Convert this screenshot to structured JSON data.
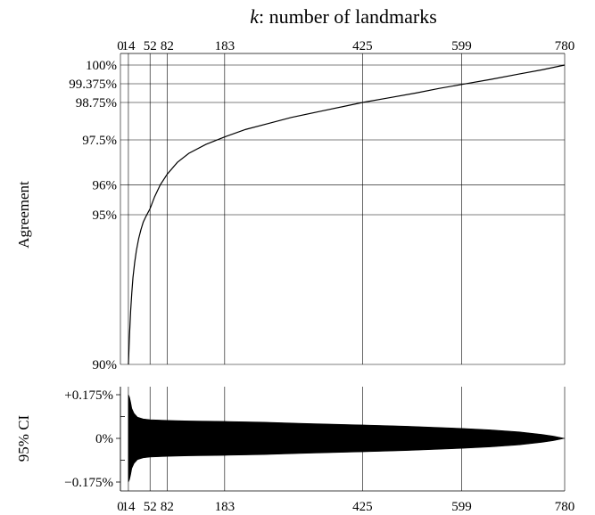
{
  "chart_data": [
    {
      "type": "line",
      "title": "k: number of landmarks",
      "title_var": "k",
      "title_rest": ": number of landmarks",
      "xlabel": "",
      "ylabel": "Agreement",
      "xlim": [
        0,
        780
      ],
      "ylim": [
        90,
        100
      ],
      "x_ticks": [
        0,
        14,
        52,
        82,
        183,
        425,
        599,
        780
      ],
      "x_tick_labels": [
        "0",
        "14",
        "52",
        "82",
        "183",
        "425",
        "599",
        "780"
      ],
      "y_ticks": [
        90,
        95,
        96,
        97.5,
        98.75,
        99.375,
        100
      ],
      "y_tick_labels": [
        "90%",
        "95%",
        "96%",
        "97.5%",
        "98.75%",
        "99.375%",
        "100%"
      ],
      "grid": true,
      "line_color": "#000000",
      "series": [
        {
          "x": [
            14,
            15,
            16,
            18,
            20,
            22,
            25,
            28,
            32,
            36,
            40,
            45,
            52,
            60,
            70,
            82,
            100,
            120,
            150,
            183,
            220,
            260,
            300,
            350,
            400,
            425,
            470,
            520,
            560,
            599,
            650,
            700,
            740,
            780
          ],
          "values": [
            90.0,
            90.5,
            91.0,
            91.8,
            92.4,
            92.9,
            93.4,
            93.8,
            94.2,
            94.5,
            94.75,
            94.95,
            95.2,
            95.6,
            96.0,
            96.35,
            96.75,
            97.05,
            97.35,
            97.6,
            97.85,
            98.05,
            98.25,
            98.45,
            98.65,
            98.75,
            98.9,
            99.07,
            99.22,
            99.35,
            99.52,
            99.7,
            99.84,
            100.0
          ]
        }
      ]
    },
    {
      "type": "area",
      "title": "",
      "xlabel": "",
      "ylabel": "95% CI",
      "xlim": [
        0,
        780
      ],
      "ylim": [
        -0.2,
        0.2
      ],
      "x_ticks": [
        0,
        14,
        52,
        82,
        183,
        425,
        599,
        780
      ],
      "x_tick_labels": [
        "0",
        "14",
        "52",
        "82",
        "183",
        "425",
        "599",
        "780"
      ],
      "y_ticks": [
        -0.175,
        0,
        0.175
      ],
      "y_tick_labels": [
        "−0.175%",
        "0%",
        "+0.175%"
      ],
      "y_minor_ticks": [
        -0.0875,
        0.0875
      ],
      "grid": true,
      "fill_color": "#000000",
      "series": [
        {
          "x": [
            14,
            16,
            18,
            20,
            24,
            30,
            40,
            52,
            82,
            120,
            183,
            250,
            320,
            425,
            500,
            599,
            650,
            700,
            740,
            760,
            780
          ],
          "upper": [
            0.175,
            0.165,
            0.145,
            0.12,
            0.1,
            0.085,
            0.078,
            0.075,
            0.072,
            0.07,
            0.068,
            0.065,
            0.06,
            0.054,
            0.049,
            0.04,
            0.034,
            0.026,
            0.016,
            0.009,
            0.0
          ],
          "lower": [
            -0.175,
            -0.165,
            -0.145,
            -0.12,
            -0.1,
            -0.085,
            -0.078,
            -0.075,
            -0.072,
            -0.07,
            -0.068,
            -0.065,
            -0.06,
            -0.054,
            -0.049,
            -0.04,
            -0.034,
            -0.026,
            -0.016,
            -0.009,
            0.0
          ]
        }
      ]
    }
  ]
}
